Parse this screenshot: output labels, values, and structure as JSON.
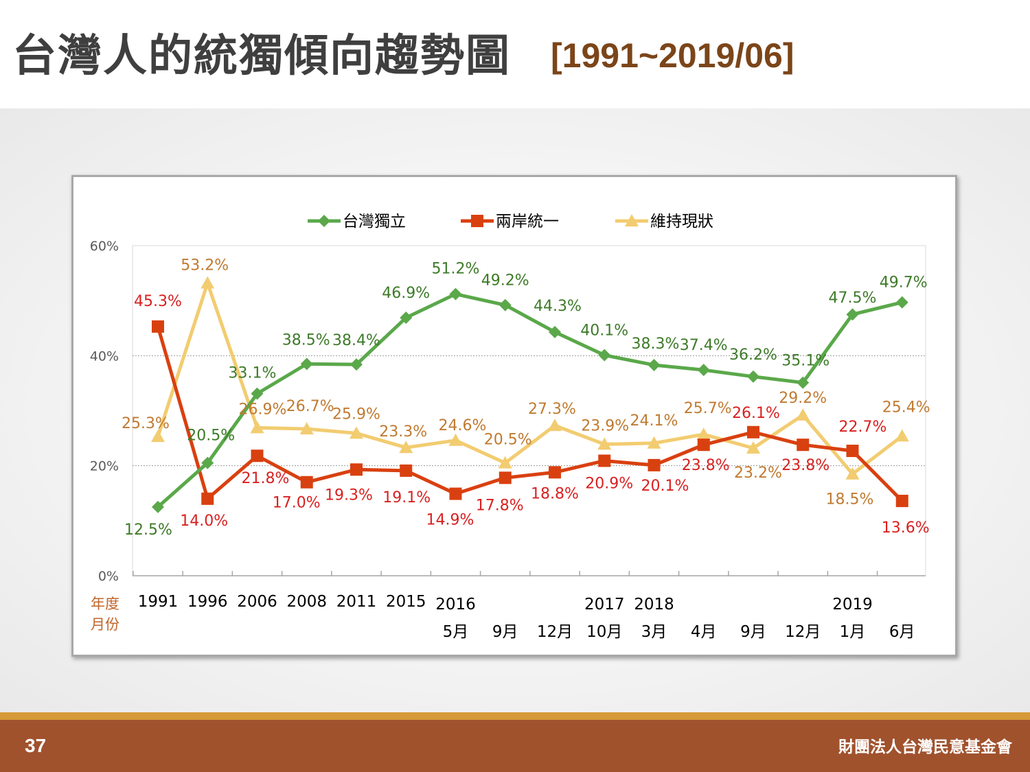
{
  "title": {
    "main": "台灣人的統獨傾向趨勢圖",
    "range": "[1991~2019/06]"
  },
  "footer": {
    "page_number": "37",
    "organization": "財團法人台灣民意基金會"
  },
  "colors": {
    "independence": "#5aa84a",
    "independence_label": "#3d7a28",
    "unification": "#d94010",
    "unification_label": "#d92020",
    "status_quo": "#f2cc70",
    "status_quo_label": "#c07a30",
    "footer_bg": "#a0522d",
    "footer_line": "#d69a3a",
    "title_sub": "#7b4519"
  },
  "chart_data": {
    "type": "line",
    "ylim": [
      0,
      60
    ],
    "yticks": [
      "0%",
      "20%",
      "40%",
      "60%"
    ],
    "grid": "horizontal dotted at 20% and 40%",
    "legend_position": "top",
    "axis_row_labels": {
      "year": "年度",
      "month": "月份"
    },
    "categories": [
      {
        "year": "1991",
        "month": ""
      },
      {
        "year": "1996",
        "month": ""
      },
      {
        "year": "2006",
        "month": ""
      },
      {
        "year": "2008",
        "month": ""
      },
      {
        "year": "2011",
        "month": ""
      },
      {
        "year": "2015",
        "month": ""
      },
      {
        "year": "2016",
        "month": "5月"
      },
      {
        "year": "",
        "month": "9月"
      },
      {
        "year": "",
        "month": "12月"
      },
      {
        "year": "2017",
        "month": "10月"
      },
      {
        "year": "2018",
        "month": "3月"
      },
      {
        "year": "",
        "month": "4月"
      },
      {
        "year": "",
        "month": "9月"
      },
      {
        "year": "",
        "month": "12月"
      },
      {
        "year": "2019",
        "month": "1月"
      },
      {
        "year": "",
        "month": "6月"
      }
    ],
    "series": [
      {
        "name": "台灣獨立",
        "marker": "diamond",
        "values": [
          12.5,
          20.5,
          33.1,
          38.5,
          38.4,
          46.9,
          51.2,
          49.2,
          44.3,
          40.1,
          38.3,
          37.4,
          36.2,
          35.1,
          47.5,
          49.7
        ],
        "labels": [
          "12.5%",
          "20.5%",
          "33.1%",
          "38.5%",
          "38.4%",
          "46.9%",
          "51.2%",
          "49.2%",
          "44.3%",
          "40.1%",
          "38.3%",
          "37.4%",
          "36.2%",
          "35.1%",
          "47.5%",
          "49.7%"
        ]
      },
      {
        "name": "兩岸統一",
        "marker": "square",
        "values": [
          45.3,
          14.0,
          21.8,
          17.0,
          19.3,
          19.1,
          14.9,
          17.8,
          18.8,
          20.9,
          20.1,
          23.8,
          26.1,
          23.8,
          22.7,
          13.6
        ],
        "labels": [
          "45.3%",
          "14.0%",
          "21.8%",
          "17.0%",
          "19.3%",
          "19.1%",
          "14.9%",
          "17.8%",
          "18.8%",
          "20.9%",
          "20.1%",
          "23.8%",
          "26.1%",
          "23.8%",
          "22.7%",
          "13.6%"
        ]
      },
      {
        "name": "維持現狀",
        "marker": "triangle",
        "values": [
          25.3,
          53.2,
          26.9,
          26.7,
          25.9,
          23.3,
          24.6,
          20.5,
          27.3,
          23.9,
          24.1,
          25.7,
          23.2,
          29.2,
          18.5,
          25.4
        ],
        "labels": [
          "25.3%",
          "53.2%",
          "26.9%",
          "26.7%",
          "25.9%",
          "23.3%",
          "24.6%",
          "20.5%",
          "27.3%",
          "23.9%",
          "24.1%",
          "25.7%",
          "23.2%",
          "29.2%",
          "18.5%",
          "25.4%"
        ]
      }
    ]
  }
}
